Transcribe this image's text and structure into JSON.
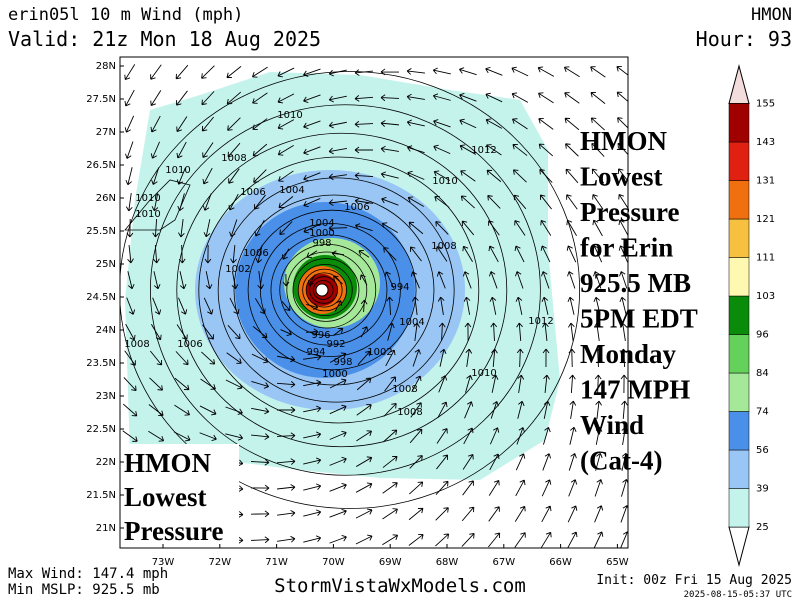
{
  "header": {
    "title": "erin05l 10 m Wind (mph)",
    "model": "HMON",
    "valid": "Valid: 21z Mon 18 Aug 2025",
    "hour": "Hour: 93"
  },
  "map": {
    "lat_labels": [
      "28N",
      "27.5N",
      "27N",
      "26.5N",
      "26N",
      "25.5N",
      "25N",
      "24.5N",
      "24N",
      "23.5N",
      "23N",
      "22.5N",
      "22N",
      "21.5N",
      "21N"
    ],
    "lon_labels": [
      "73W",
      "72W",
      "71W",
      "70W",
      "69W",
      "68W",
      "67W",
      "66W",
      "65W"
    ],
    "isobar_labels": [
      "1010",
      "1010",
      "1008",
      "1010",
      "1006",
      "1004",
      "1006",
      "1012",
      "1010",
      "1010",
      "1008",
      "1002",
      "1006",
      "1004",
      "1000",
      "998",
      "994",
      "996",
      "992",
      "1004",
      "1002",
      "1008",
      "1012",
      "1010",
      "1008",
      "1000",
      "998",
      "994",
      "1008",
      "1006"
    ]
  },
  "colorbar": {
    "labels": [
      "25",
      "39",
      "56",
      "74",
      "84",
      "96",
      "103",
      "111",
      "121",
      "131",
      "143",
      "155"
    ]
  },
  "annotation_right": {
    "lines": [
      "HMON",
      "Lowest",
      "Pressure",
      "for Erin",
      "925.5 MB",
      "5PM EDT",
      "Monday",
      "147 MPH",
      "Wind",
      "(Cat-4)"
    ]
  },
  "annotation_left": {
    "lines": [
      "HMON",
      "Lowest",
      "Pressure"
    ]
  },
  "footer": {
    "max_wind": "Max Wind: 147.4 mph",
    "min_mslp": "Min MSLP: 925.5 mb",
    "site": "StormVistaWxModels.com",
    "init": "Init: 00z Fri 15 Aug 2025",
    "stamp": "2025-08-15-05:37 UTC"
  }
}
